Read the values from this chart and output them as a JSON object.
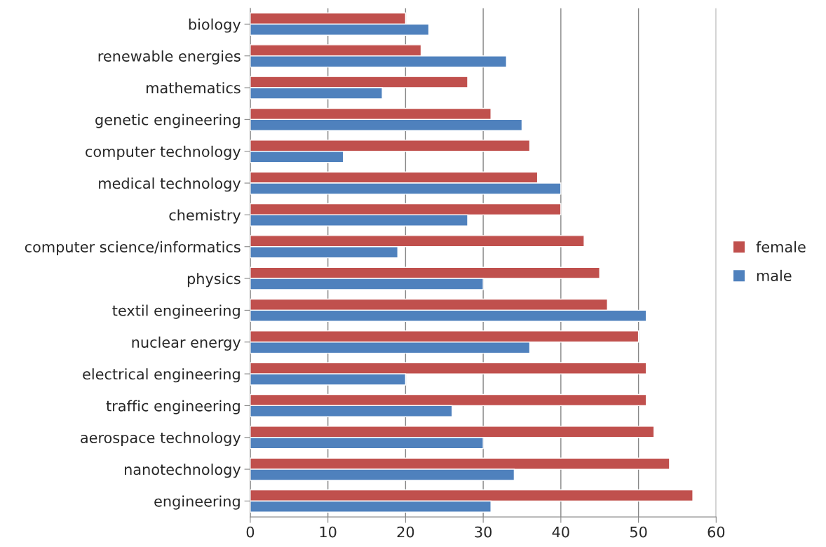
{
  "chart_data": {
    "type": "bar",
    "orientation": "horizontal",
    "categories": [
      "biology",
      "renewable energies",
      "mathematics",
      "genetic engineering",
      "computer technology",
      "medical technology",
      "chemistry",
      "computer science/informatics",
      "physics",
      "textil engineering",
      "nuclear energy",
      "electrical engineering",
      "traffic engineering",
      "aerospace technology",
      "nanotechnology",
      "engineering"
    ],
    "series": [
      {
        "name": "female",
        "color": "#c0504d",
        "values": [
          20,
          22,
          28,
          31,
          36,
          37,
          40,
          43,
          45,
          46,
          50,
          51,
          51,
          52,
          54,
          57
        ]
      },
      {
        "name": "male",
        "color": "#4f81bd",
        "values": [
          23,
          33,
          17,
          35,
          12,
          40,
          28,
          19,
          30,
          51,
          36,
          20,
          26,
          30,
          34,
          31
        ]
      }
    ],
    "xlim": [
      0,
      60
    ],
    "xticks": [
      0,
      10,
      20,
      30,
      40,
      50,
      60
    ],
    "grid": "x",
    "legend": "right"
  }
}
